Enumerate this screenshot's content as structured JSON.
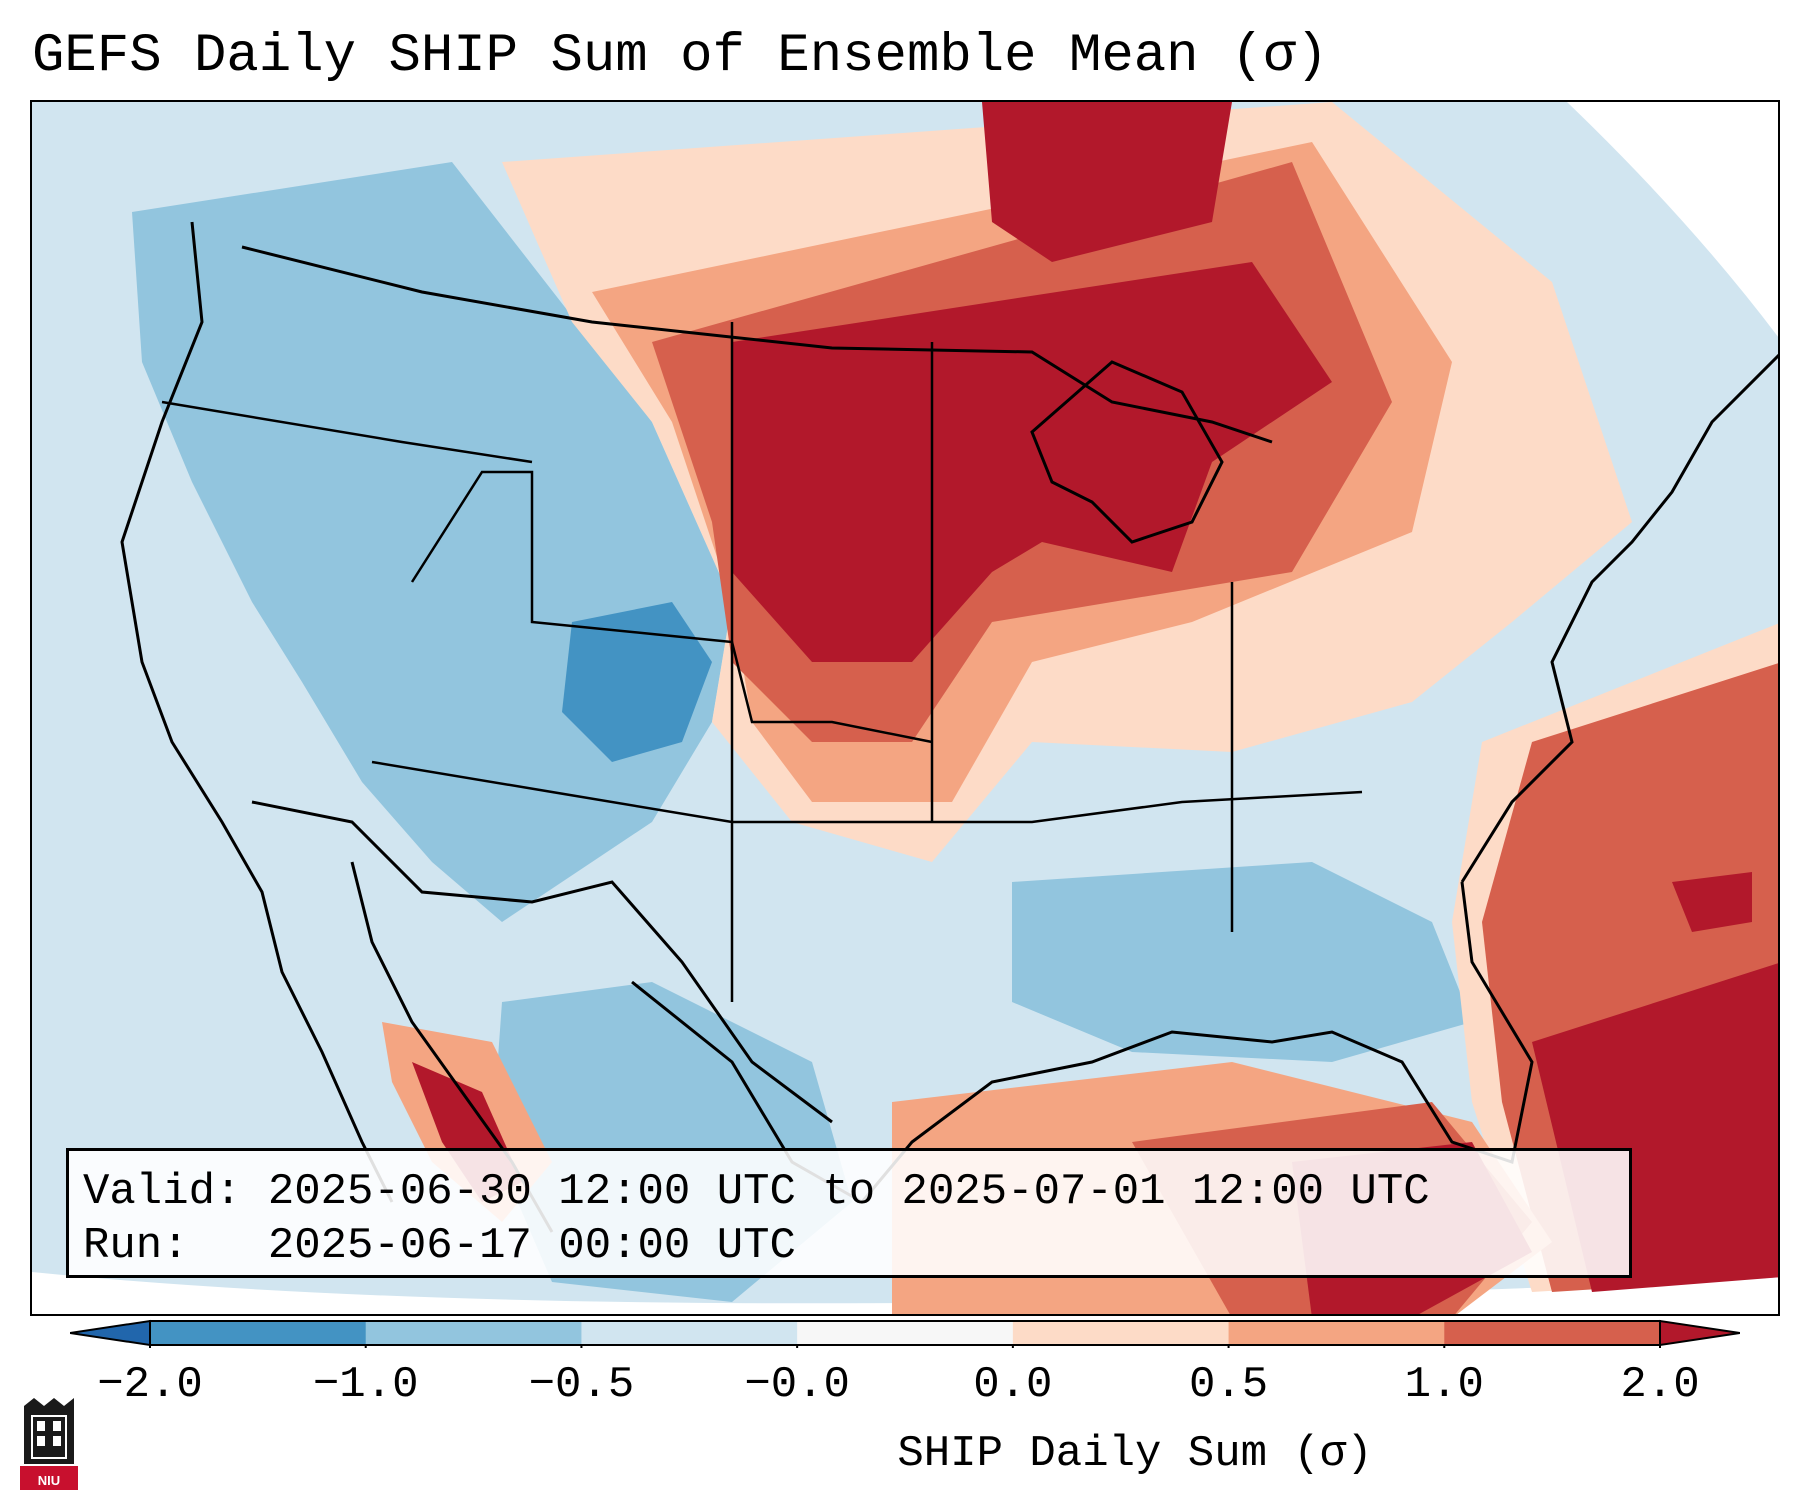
{
  "title": "GEFS Daily SHIP Sum of Ensemble Mean (σ)",
  "info": {
    "valid_label": "Valid:",
    "valid_value": "2025-06-30 12:00 UTC to 2025-07-01 12:00 UTC",
    "run_label": "Run:",
    "run_value": "2025-06-17 00:00 UTC"
  },
  "colorbar": {
    "label": "SHIP Daily Sum (σ)",
    "ticks": [
      "−2.0",
      "−1.0",
      "−0.5",
      "−0.0",
      "0.0",
      "0.5",
      "1.0",
      "2.0"
    ],
    "colors": [
      "#4393c3",
      "#92c5de",
      "#d1e5f0",
      "#f7f7f7",
      "#fddbc7",
      "#f4a582",
      "#d6604d"
    ],
    "under_color": "#2166ac",
    "over_color": "#b2182b"
  },
  "logo": {
    "text": "NIU"
  }
}
